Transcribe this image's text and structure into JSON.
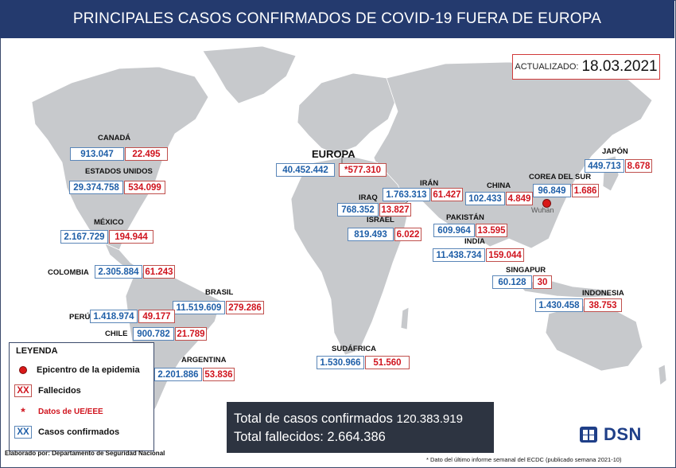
{
  "header": {
    "title": "PRINCIPALES CASOS CONFIRMADOS DE COVID-19 FUERA DE EUROPA"
  },
  "updated": {
    "label": "ACTUALIZADO:",
    "date": "18.03.2021"
  },
  "countries": {
    "canada": {
      "name": "CANADÁ",
      "cases": "913.047",
      "deaths": "22.495"
    },
    "usa": {
      "name": "ESTADOS UNIDOS",
      "cases": "29.374.758",
      "deaths": "534.099"
    },
    "mexico": {
      "name": "MÉXICO",
      "cases": "2.167.729",
      "deaths": "194.944"
    },
    "colombia": {
      "name": "COLOMBIA",
      "cases": "2.305.884",
      "deaths": "61.243"
    },
    "brasil": {
      "name": "BRASIL",
      "cases": "11.519.609",
      "deaths": "279.286"
    },
    "peru": {
      "name": "PERÚ",
      "cases": "1.418.974",
      "deaths": "49.177"
    },
    "chile": {
      "name": "CHILE",
      "cases": "900.782",
      "deaths": "21.789"
    },
    "argentina": {
      "name": "ARGENTINA",
      "cases": "2.201.886",
      "deaths": "53.836"
    },
    "europa": {
      "name": "EUROPA",
      "cases": "40.452.442",
      "deaths": "*577.310"
    },
    "iran": {
      "name": "IRÁN",
      "cases": "1.763.313",
      "deaths": "61.427"
    },
    "iraq": {
      "name": "IRAQ",
      "cases": "768.352",
      "deaths": "13.827"
    },
    "israel": {
      "name": "ISRAEL",
      "cases": "819.493",
      "deaths": "6.022"
    },
    "china": {
      "name": "CHINA",
      "cases": "102.433",
      "deaths": "4.849"
    },
    "korea": {
      "name": "COREA DEL SUR",
      "cases": "96.849",
      "deaths": "1.686"
    },
    "japan": {
      "name": "JAPÓN",
      "cases": "449.713",
      "deaths": "8.678"
    },
    "pakistan": {
      "name": "PAKISTÁN",
      "cases": "609.964",
      "deaths": "13.595"
    },
    "india": {
      "name": "INDIA",
      "cases": "11.438.734",
      "deaths": "159.044"
    },
    "singapur": {
      "name": "SINGAPUR",
      "cases": "60.128",
      "deaths": "30"
    },
    "indonesia": {
      "name": "INDONESIA",
      "cases": "1.430.458",
      "deaths": "38.753"
    },
    "sudafrica": {
      "name": "SUDÁFRICA",
      "cases": "1.530.966",
      "deaths": "51.560"
    }
  },
  "epicenter": {
    "label": "Wuhan"
  },
  "legend": {
    "title": "LEYENDA",
    "epicenter": "Epicentro de la epidemia",
    "deaths_symbol": "XX",
    "deaths": "Fallecidos",
    "eu_symbol": "*",
    "eu": "Datos de UE/EEE",
    "cases_symbol": "XX",
    "cases": "Casos confirmados"
  },
  "totals": {
    "cases_label": "Total de casos confirmados",
    "cases_value": "120.383.919",
    "deaths_label": "Total fallecidos:",
    "deaths_value": "2.664.386"
  },
  "credit": "Elaborado por: Departamento de Seguridad Nacional",
  "footnote": "* Dato del último informe semanal del ECDC (publicado semana 2021-10)",
  "logo": {
    "text": "DSN"
  },
  "colors": {
    "header": "#243a6e",
    "cases": "#1f5fa8",
    "deaths": "#d0141e",
    "land": "#c7c9cc",
    "totals_bg": "#2d3441"
  }
}
